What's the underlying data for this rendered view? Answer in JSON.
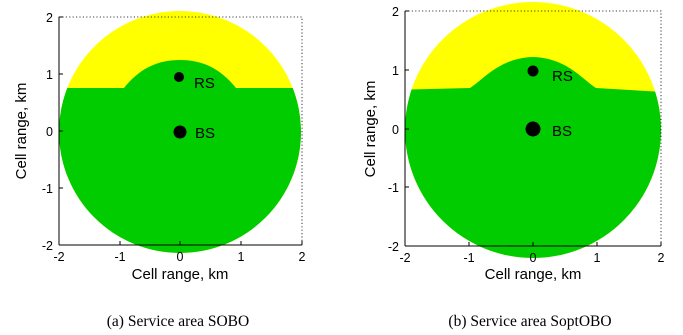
{
  "panels": [
    {
      "id": "a",
      "caption": "(a)  Service area SOBO",
      "xlabel": "Cell range, km",
      "ylabel": "Cell range, km",
      "x_ticks": [
        "-2",
        "-1",
        "0",
        "1",
        "2"
      ],
      "y_ticks": [
        "2",
        "1",
        "0",
        "-1",
        "-2"
      ],
      "rs_label": "RS",
      "bs_label": "BS"
    },
    {
      "id": "b",
      "caption": "(b)  Service area SoptOBO",
      "xlabel": "Cell range, km",
      "ylabel": "Cell range, km",
      "x_ticks": [
        "-2",
        "-1",
        "0",
        "1",
        "2"
      ],
      "y_ticks": [
        "2",
        "1",
        "0",
        "-1",
        "-2"
      ],
      "rs_label": "RS",
      "bs_label": "BS"
    }
  ],
  "colors": {
    "green_region": "#00cc00",
    "yellow_region": "#ffff00",
    "marker": "#000000"
  }
}
